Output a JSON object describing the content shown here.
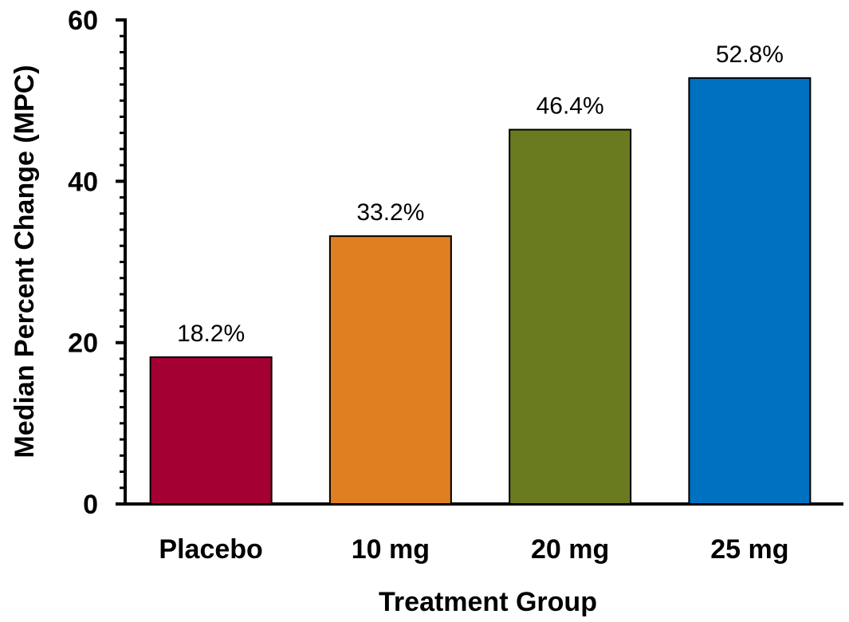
{
  "chart_data": {
    "type": "bar",
    "categories": [
      "Placebo",
      "10 mg",
      "20 mg",
      "25 mg"
    ],
    "values": [
      18.2,
      33.2,
      46.4,
      52.8
    ],
    "data_labels": [
      "18.2%",
      "33.2%",
      "46.4%",
      "52.8%"
    ],
    "colors": [
      "#A50034",
      "#E07E22",
      "#6A7A1E",
      "#0070C0"
    ],
    "title": "",
    "xlabel": "Treatment Group",
    "ylabel": "Median Percent Change (MPC)",
    "ylim": [
      0,
      60
    ],
    "yticks": [
      0,
      20,
      40,
      60
    ],
    "minor_tick_step": 2,
    "grid": false,
    "legend": "none"
  }
}
